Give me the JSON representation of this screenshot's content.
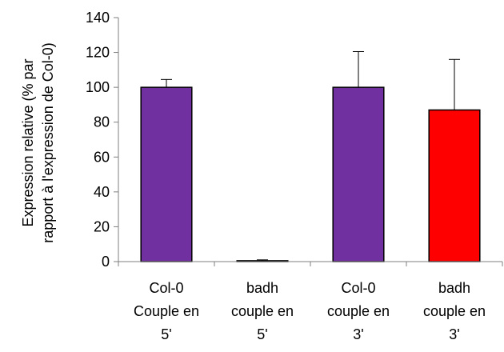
{
  "chart_data": {
    "type": "bar",
    "title": "",
    "ylabel": [
      "Expression relative (% par",
      "rapport à l'expression de Col-0)"
    ],
    "xlabel": "",
    "ylim": [
      0,
      140
    ],
    "yticks": [
      0,
      20,
      40,
      60,
      80,
      100,
      120,
      140
    ],
    "yticklabels": [
      "0",
      "20",
      "40",
      "60",
      "80",
      "100",
      "120",
      "140"
    ],
    "grid": false,
    "legend": "none",
    "categories": [
      [
        "Col-0",
        "Couple en",
        "5'"
      ],
      [
        "badh",
        "couple en",
        "5'"
      ],
      [
        "Col-0",
        "couple en",
        "3'"
      ],
      [
        "badh",
        "couple en",
        "3'"
      ]
    ],
    "values": [
      100,
      0.5,
      100,
      87
    ],
    "error_upper": [
      4.5,
      0.5,
      20.5,
      29
    ],
    "colors": [
      "#7030A0",
      "#7030A0",
      "#7030A0",
      "#FF0000"
    ]
  }
}
